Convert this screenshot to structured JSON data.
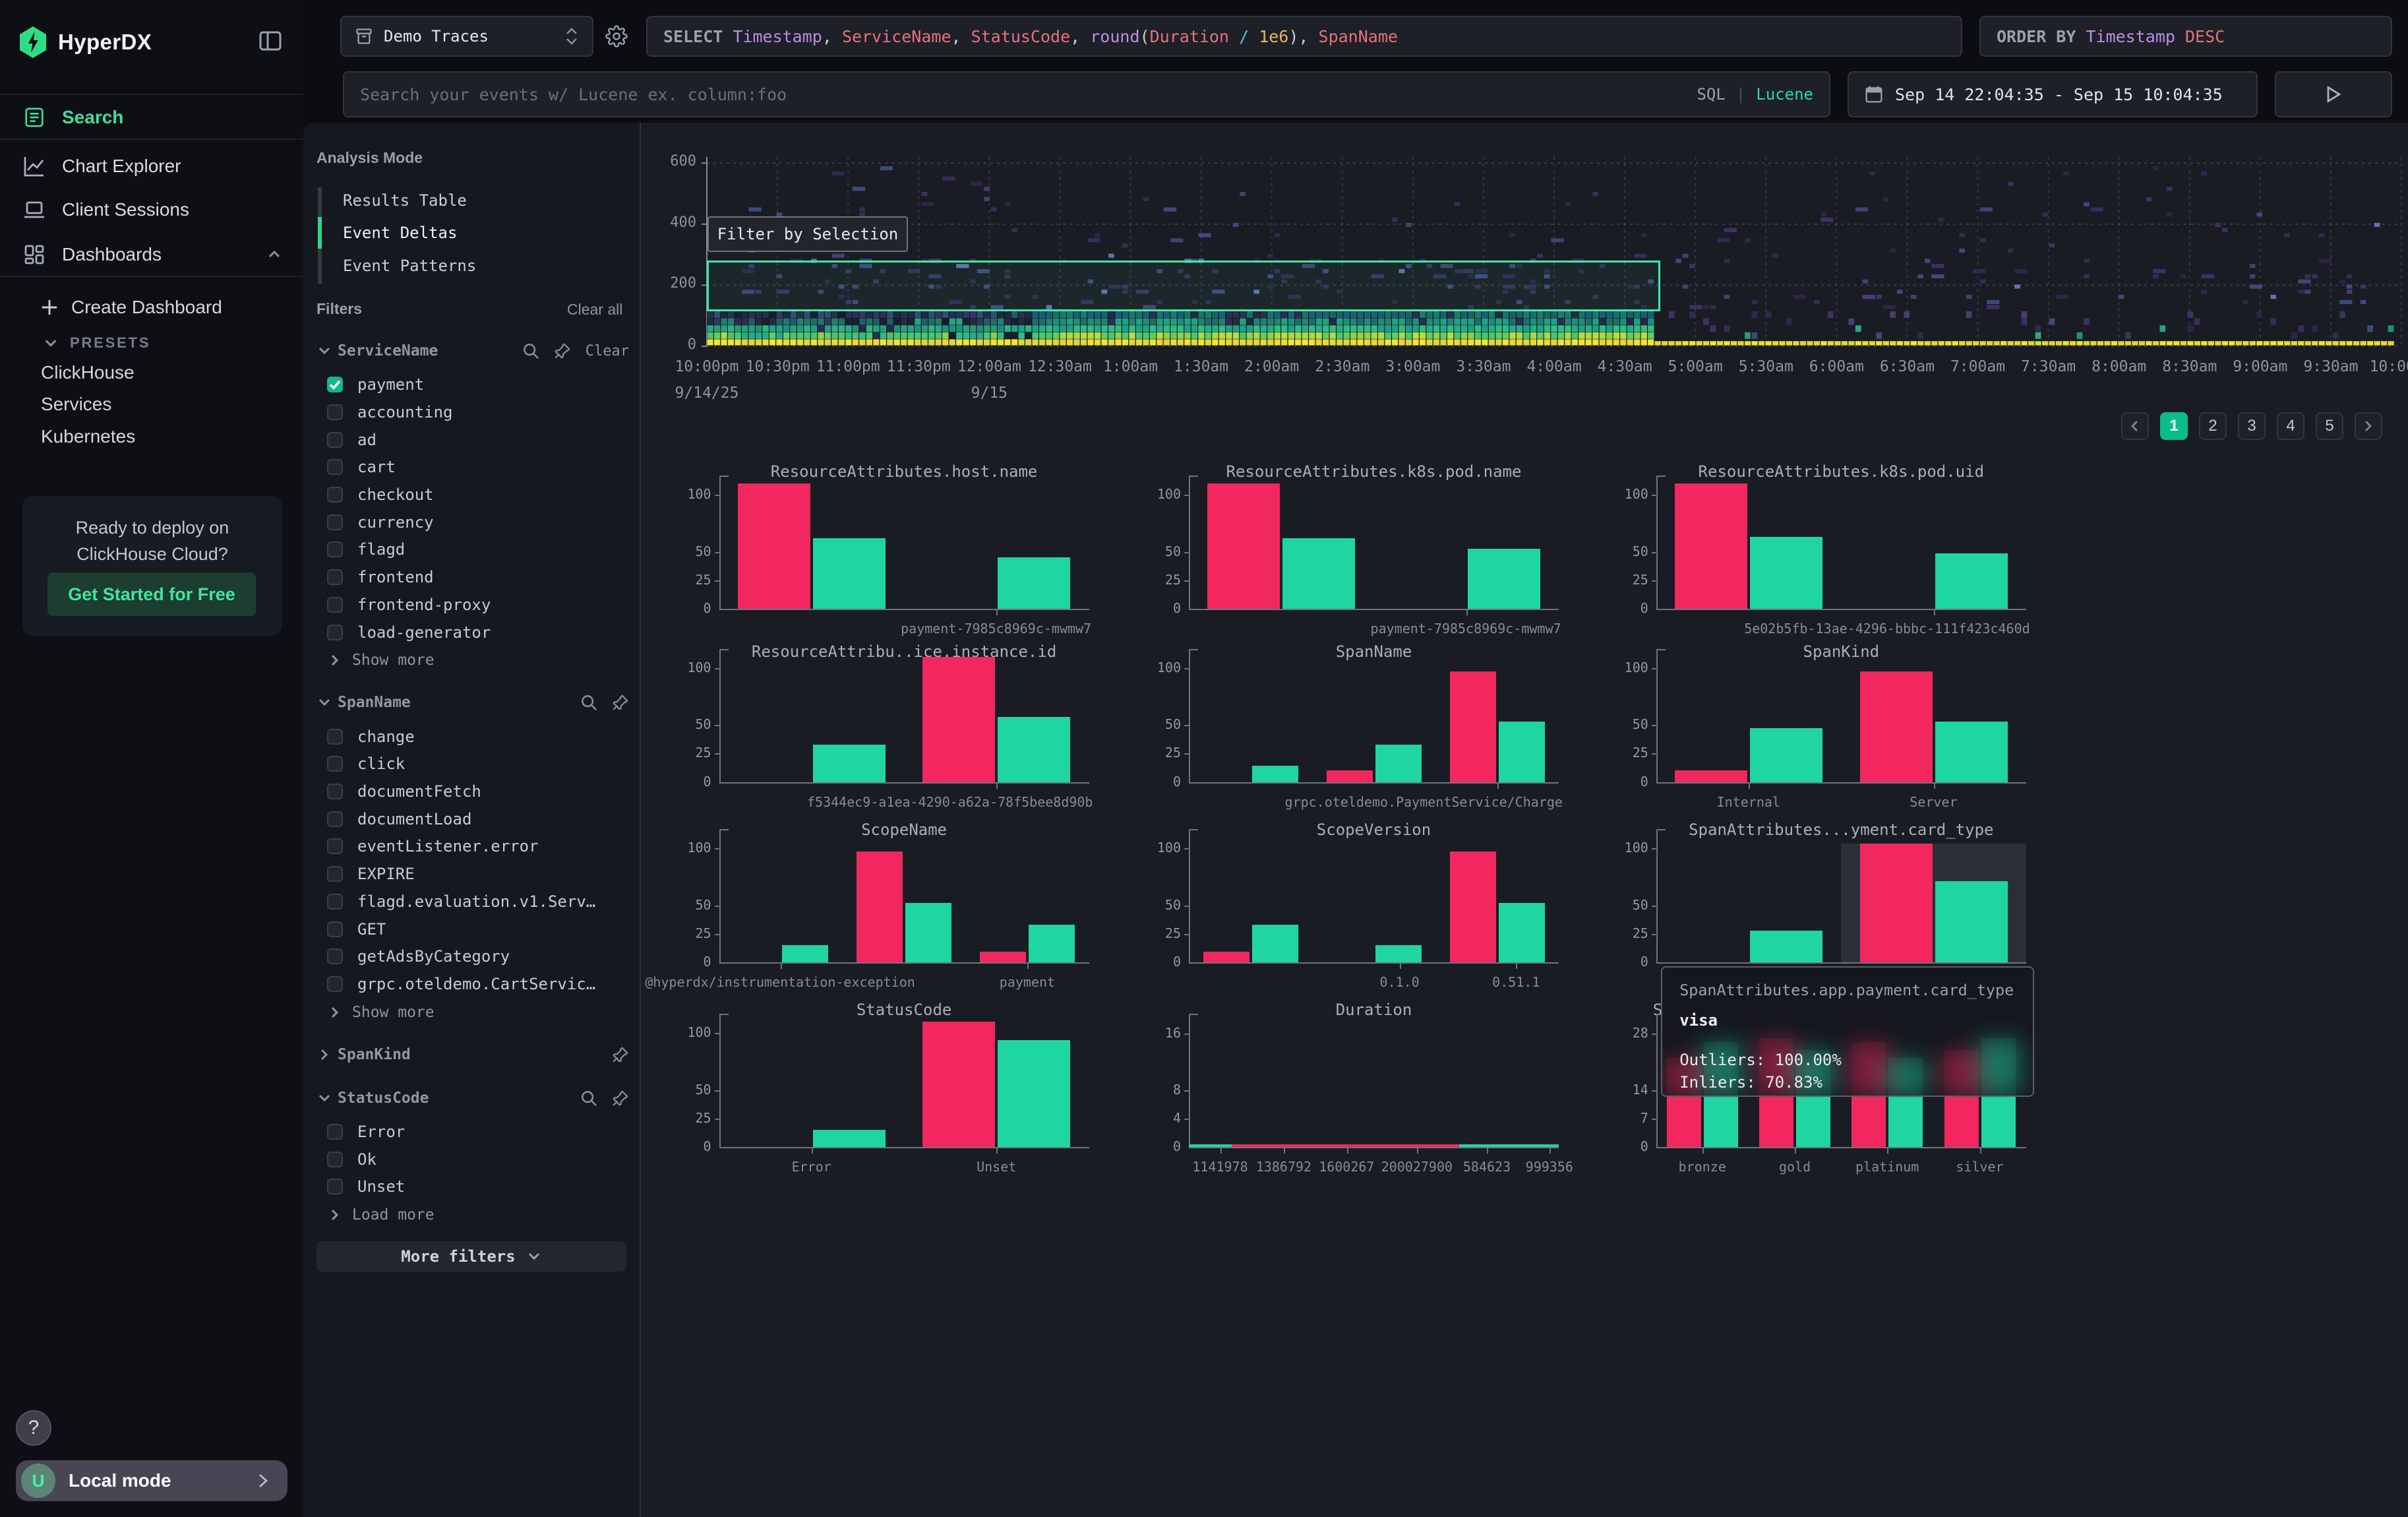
{
  "app_title": "HyperDX",
  "sidebar": {
    "logo_text": "HyperDX",
    "nav": [
      {
        "id": "search",
        "label": "Search",
        "icon": "reader-icon",
        "active": true
      },
      {
        "id": "chart-explorer",
        "label": "Chart Explorer",
        "icon": "chart-line-icon",
        "active": false
      },
      {
        "id": "client-sessions",
        "label": "Client Sessions",
        "icon": "laptop-icon",
        "active": false
      },
      {
        "id": "dashboards",
        "label": "Dashboards",
        "icon": "dashboard-icon",
        "active": false,
        "expanded": true
      }
    ],
    "create_dashboard": "Create Dashboard",
    "presets_label": "PRESETS",
    "presets": [
      "ClickHouse",
      "Services",
      "Kubernetes"
    ],
    "promo": {
      "line1": "Ready to deploy on",
      "line2": "ClickHouse Cloud?",
      "cta": "Get Started for Free"
    },
    "help_label": "?",
    "user": {
      "avatar": "U",
      "label": "Local mode"
    }
  },
  "topbar": {
    "source_select": {
      "value": "Demo Traces"
    },
    "query_tokens": [
      {
        "t": "SELECT ",
        "c": "kw"
      },
      {
        "t": "Timestamp",
        "c": "id"
      },
      {
        "t": ", ",
        "c": "p"
      },
      {
        "t": "ServiceName",
        "c": "f"
      },
      {
        "t": ", ",
        "c": "p"
      },
      {
        "t": "StatusCode",
        "c": "f"
      },
      {
        "t": ", ",
        "c": "p"
      },
      {
        "t": "round",
        "c": "id"
      },
      {
        "t": "(",
        "c": "p"
      },
      {
        "t": "Duration",
        "c": "f"
      },
      {
        "t": " ",
        "c": "p"
      },
      {
        "t": "/",
        "c": "op"
      },
      {
        "t": " ",
        "c": "p"
      },
      {
        "t": "1e6",
        "c": "n"
      },
      {
        "t": ")",
        "c": "p"
      },
      {
        "t": ", ",
        "c": "p"
      },
      {
        "t": "SpanName",
        "c": "f"
      }
    ],
    "orderby_tokens": [
      {
        "t": "ORDER BY ",
        "c": "kw"
      },
      {
        "t": "Timestamp ",
        "c": "id"
      },
      {
        "t": "DESC",
        "c": "f"
      }
    ],
    "search": {
      "placeholder": "Search your events w/ Lucene ex. column:foo",
      "modes": [
        "SQL",
        "Lucene"
      ],
      "active_mode": "Lucene",
      "divider": "|"
    },
    "date_range": "Sep 14 22:04:35 - Sep 15 10:04:35"
  },
  "panel": {
    "analysis_mode": {
      "label": "Analysis Mode",
      "options": [
        "Results Table",
        "Event Deltas",
        "Event Patterns"
      ],
      "active": "Event Deltas"
    },
    "filters_label": "Filters",
    "clear_all": "Clear all",
    "groups": [
      {
        "name": "ServiceName",
        "expanded": true,
        "icons": [
          "search",
          "pin"
        ],
        "clear": "Clear",
        "items": [
          {
            "label": "payment",
            "checked": true
          },
          {
            "label": "accounting"
          },
          {
            "label": "ad"
          },
          {
            "label": "cart"
          },
          {
            "label": "checkout"
          },
          {
            "label": "currency"
          },
          {
            "label": "flagd"
          },
          {
            "label": "frontend"
          },
          {
            "label": "frontend-proxy"
          },
          {
            "label": "load-generator"
          }
        ],
        "more": "Show more"
      },
      {
        "name": "SpanName",
        "expanded": true,
        "icons": [
          "search",
          "pin"
        ],
        "items": [
          {
            "label": "change"
          },
          {
            "label": "click"
          },
          {
            "label": "documentFetch"
          },
          {
            "label": "documentLoad"
          },
          {
            "label": "eventListener.error"
          },
          {
            "label": "EXPIRE"
          },
          {
            "label": "flagd.evaluation.v1.Serv…"
          },
          {
            "label": "GET"
          },
          {
            "label": "getAdsByCategory"
          },
          {
            "label": "grpc.oteldemo.CartServic…"
          }
        ],
        "more": "Show more"
      },
      {
        "name": "SpanKind",
        "expanded": false,
        "icons": [
          "pin"
        ],
        "items": []
      },
      {
        "name": "StatusCode",
        "expanded": true,
        "icons": [
          "search",
          "pin"
        ],
        "items": [
          {
            "label": "Error"
          },
          {
            "label": "Ok"
          },
          {
            "label": "Unset"
          }
        ],
        "more": "Load more"
      }
    ],
    "more_filters": "More filters"
  },
  "chart_data": [
    {
      "type": "heatmap",
      "title": "",
      "ylabel": "",
      "xlabel": "",
      "yticks": [
        0,
        200,
        400,
        600
      ],
      "ylim": [
        0,
        620
      ],
      "xticks": [
        "10:00pm",
        "10:30pm",
        "11:00pm",
        "11:30pm",
        "12:00am",
        "12:30am",
        "1:00am",
        "1:30am",
        "2:00am",
        "2:30am",
        "3:00am",
        "3:30am",
        "4:00am",
        "4:30am",
        "5:00am",
        "5:30am",
        "6:00am",
        "6:30am",
        "7:00am",
        "7:30am",
        "8:00am",
        "8:30am",
        "9:00am",
        "9:30am",
        "10:00am"
      ],
      "date_ticks": [
        {
          "label": "9/14/25",
          "tick": 0
        },
        {
          "label": "9/15",
          "tick": 4
        }
      ],
      "description": "Event density heatmap: dense teal/green band below ~100 with bright yellow row at 0 until ~4:50am, sparse purple cells up to ~600 across full range; yellow baseline row continues to 10:00am",
      "palette": {
        "low": "#2d2b52",
        "mid": "#1f8f7b",
        "high": "#3fc878",
        "max": "#ead937"
      },
      "seed": 1337,
      "selection": {
        "x0_tick": 0,
        "x1_tick": 13.5,
        "y0": 115,
        "y1": 280,
        "label": "Filter by Selection"
      },
      "legend_pos": "none",
      "grid": "dotted"
    },
    {
      "type": "bar",
      "title": "ResourceAttributes.host.name",
      "col": 0,
      "row": 0,
      "n": 2,
      "yticks": [
        0,
        25,
        50,
        100
      ],
      "ymax": 110,
      "bars": [
        {
          "cat": 0,
          "series": "Outliers",
          "value": 100,
          "clip": true
        },
        {
          "cat": 0,
          "series": "Inliers",
          "value": 62
        },
        {
          "cat": 1,
          "series": "Inliers",
          "value": 45
        }
      ],
      "xlabels": [
        {
          "cat": 1,
          "text": "payment-7985c8969c-mwmw7"
        }
      ]
    },
    {
      "type": "bar",
      "title": "ResourceAttributes.k8s.pod.name",
      "col": 1,
      "row": 0,
      "n": 2,
      "yticks": [
        0,
        25,
        50,
        100
      ],
      "ymax": 110,
      "bars": [
        {
          "cat": 0,
          "series": "Outliers",
          "value": 100,
          "clip": true
        },
        {
          "cat": 0,
          "series": "Inliers",
          "value": 62
        },
        {
          "cat": 1,
          "series": "Inliers",
          "value": 53
        }
      ],
      "xlabels": [
        {
          "cat": 1,
          "text": "payment-7985c8969c-mwmw7"
        }
      ]
    },
    {
      "type": "bar",
      "title": "ResourceAttributes.k8s.pod.uid",
      "col": 2,
      "row": 0,
      "n": 2,
      "yticks": [
        0,
        25,
        50,
        100
      ],
      "ymax": 110,
      "bars": [
        {
          "cat": 0,
          "series": "Outliers",
          "value": 100,
          "clip": true
        },
        {
          "cat": 0,
          "series": "Inliers",
          "value": 63
        },
        {
          "cat": 1,
          "series": "Inliers",
          "value": 49
        }
      ],
      "xlabels": [
        {
          "cat": 1,
          "text": "5e02b5fb-13ae-4296-bbbc-111f423c460d"
        }
      ]
    },
    {
      "type": "bar",
      "title": "ResourceAttribu..ice.instance.id",
      "col": 0,
      "row": 1,
      "n": 2,
      "yticks": [
        0,
        25,
        50,
        100
      ],
      "ymax": 110,
      "bars": [
        {
          "cat": 0,
          "series": "Inliers",
          "value": 33
        },
        {
          "cat": 1,
          "series": "Outliers",
          "value": 100,
          "clip": true
        },
        {
          "cat": 1,
          "series": "Inliers",
          "value": 57
        }
      ],
      "xlabels": [
        {
          "cat": 1,
          "text": "f5344ec9-a1ea-4290-a62a-78f5bee8d90b"
        }
      ]
    },
    {
      "type": "bar",
      "title": "SpanName",
      "col": 1,
      "row": 1,
      "n": 3,
      "yticks": [
        0,
        25,
        50,
        100
      ],
      "ymax": 110,
      "bars": [
        {
          "cat": 0,
          "series": "Inliers",
          "value": 14
        },
        {
          "cat": 1,
          "series": "Outliers",
          "value": 10
        },
        {
          "cat": 1,
          "series": "Inliers",
          "value": 33
        },
        {
          "cat": 2,
          "series": "Outliers",
          "value": 97
        },
        {
          "cat": 2,
          "series": "Inliers",
          "value": 53
        }
      ],
      "xlabels": [
        {
          "cat": 2,
          "text": "grpc.oteldemo.PaymentService/Charge"
        }
      ]
    },
    {
      "type": "bar",
      "title": "SpanKind",
      "col": 2,
      "row": 1,
      "n": 2,
      "yticks": [
        0,
        25,
        50,
        100
      ],
      "ymax": 110,
      "bars": [
        {
          "cat": 0,
          "series": "Outliers",
          "value": 10
        },
        {
          "cat": 0,
          "series": "Inliers",
          "value": 47
        },
        {
          "cat": 1,
          "series": "Outliers",
          "value": 97
        },
        {
          "cat": 1,
          "series": "Inliers",
          "value": 53
        }
      ],
      "xlabels": [
        {
          "cat": 0,
          "text": "Internal"
        },
        {
          "cat": 1,
          "text": "Server"
        }
      ]
    },
    {
      "type": "bar",
      "title": "ScopeName",
      "col": 0,
      "row": 2,
      "n": 3,
      "yticks": [
        0,
        25,
        50,
        100
      ],
      "ymax": 110,
      "bars": [
        {
          "cat": 0,
          "series": "Inliers",
          "value": 15
        },
        {
          "cat": 1,
          "series": "Outliers",
          "value": 97
        },
        {
          "cat": 1,
          "series": "Inliers",
          "value": 52
        },
        {
          "cat": 2,
          "series": "Outliers",
          "value": 9
        },
        {
          "cat": 2,
          "series": "Inliers",
          "value": 33
        }
      ],
      "xlabels": [
        {
          "cat": 0,
          "text": "@hyperdx/instrumentation-exception"
        },
        {
          "cat": 2,
          "text": "payment"
        }
      ]
    },
    {
      "type": "bar",
      "title": "ScopeVersion",
      "col": 1,
      "row": 2,
      "n": 3,
      "yticks": [
        0,
        25,
        50,
        100
      ],
      "ymax": 110,
      "bars": [
        {
          "cat": 0,
          "series": "Outliers",
          "value": 9
        },
        {
          "cat": 0,
          "series": "Inliers",
          "value": 33
        },
        {
          "cat": 1,
          "series": "Inliers",
          "value": 15
        },
        {
          "cat": 2,
          "series": "Outliers",
          "value": 97
        },
        {
          "cat": 2,
          "series": "Inliers",
          "value": 52
        }
      ],
      "xlabels": [
        {
          "cat": 1,
          "text": "0.1.0",
          "fx": 0.57
        },
        {
          "cat": 2,
          "text": "0.51.1",
          "fx": 0.885
        }
      ]
    },
    {
      "type": "bar",
      "title": "SpanAttributes...yment.card_type",
      "col": 2,
      "row": 2,
      "n": 2,
      "yticks": [
        0,
        25,
        50,
        100
      ],
      "ymax": 110,
      "highlight_cat": 1,
      "clip_h": 90,
      "bars": [
        {
          "cat": 0,
          "series": "Inliers",
          "value": 28
        },
        {
          "cat": 1,
          "series": "Outliers",
          "value": 100,
          "clip": true
        },
        {
          "cat": 1,
          "series": "Inliers",
          "value": 71
        }
      ],
      "xlabels": []
    },
    {
      "type": "bar",
      "title": "StatusCode",
      "col": 0,
      "row": 3,
      "n": 2,
      "yticks": [
        0,
        25,
        50,
        100
      ],
      "ymax": 110,
      "bars": [
        {
          "cat": 0,
          "series": "Inliers",
          "value": 15
        },
        {
          "cat": 1,
          "series": "Outliers",
          "value": 100,
          "clip": true
        },
        {
          "cat": 1,
          "series": "Inliers",
          "value": 94
        }
      ],
      "xlabels": [
        {
          "cat": 0,
          "text": "Error"
        },
        {
          "cat": 1,
          "text": "Unset"
        }
      ]
    },
    {
      "type": "bar",
      "title": "Duration",
      "col": 1,
      "row": 3,
      "n": 6,
      "yticks": [
        0,
        4,
        8,
        16
      ],
      "ymax": 17.7,
      "xlabel_size": 10,
      "bars": [
        {
          "cat": 0,
          "series": "Outliers",
          "value": 0.3
        },
        {
          "cat": 0,
          "series": "Inliers",
          "value": 0.3
        },
        {
          "cat": 1,
          "series": "Outliers",
          "value": 0.3
        },
        {
          "cat": 1,
          "series": "Inliers",
          "value": 0.3
        },
        {
          "cat": 2,
          "series": "Outliers",
          "value": 0.3
        },
        {
          "cat": 2,
          "series": "Inliers",
          "value": 0.3
        },
        {
          "cat": 3,
          "series": "Outliers",
          "value": 0.3
        },
        {
          "cat": 3,
          "series": "Inliers",
          "value": 0.3
        },
        {
          "cat": 4,
          "series": "Outliers",
          "value": 0.3
        },
        {
          "cat": 4,
          "series": "Inliers",
          "value": 0.3
        },
        {
          "cat": 5,
          "series": "Outliers",
          "value": 0.3
        },
        {
          "cat": 5,
          "series": "Inliers",
          "value": 0.3
        }
      ],
      "strips": [
        {
          "fx": 0,
          "fw": 0.115,
          "series": "Inliers"
        },
        {
          "fx": 0.115,
          "fw": 0.615,
          "series": "Outliers"
        },
        {
          "fx": 0.73,
          "fw": 0.27,
          "series": "Inliers"
        }
      ],
      "xlabels": [
        {
          "cat": 0,
          "text": "1141978",
          "fx": 0.085
        },
        {
          "cat": 1,
          "text": "1386792",
          "fx": 0.257
        },
        {
          "cat": 2,
          "text": "1600267",
          "fx": 0.427
        },
        {
          "cat": 3,
          "text": "200027900",
          "fx": 0.617
        },
        {
          "cat": 4,
          "text": "584623",
          "fx": 0.806
        },
        {
          "cat": 5,
          "text": "999356",
          "fx": 0.975
        }
      ]
    },
    {
      "type": "bar",
      "title": "S",
      "title_align": "left",
      "col": 2,
      "row": 3,
      "n": 4,
      "yticks": [
        0,
        7,
        14,
        28
      ],
      "ymax": 31,
      "bars": [
        {
          "cat": 0,
          "series": "Outliers",
          "value": 22
        },
        {
          "cat": 0,
          "series": "Inliers",
          "value": 26
        },
        {
          "cat": 1,
          "series": "Outliers",
          "value": 27
        },
        {
          "cat": 1,
          "series": "Inliers",
          "value": 24
        },
        {
          "cat": 2,
          "series": "Outliers",
          "value": 26
        },
        {
          "cat": 2,
          "series": "Inliers",
          "value": 22
        },
        {
          "cat": 3,
          "series": "Outliers",
          "value": 24
        },
        {
          "cat": 3,
          "series": "Inliers",
          "value": 27
        }
      ],
      "xlabels": [
        {
          "cat": 0,
          "text": "bronze"
        },
        {
          "cat": 1,
          "text": "gold"
        },
        {
          "cat": 2,
          "text": "platinum"
        },
        {
          "cat": 3,
          "text": "silver"
        }
      ]
    }
  ],
  "series_colors": {
    "Outliers": "#f2275e",
    "Inliers": "#1fd6a2"
  },
  "pagination": {
    "prev": "chevron-left",
    "pages": [
      "1",
      "2",
      "3",
      "4",
      "5"
    ],
    "active": "1",
    "next": "chevron-right"
  },
  "tooltip": {
    "title": "SpanAttributes.app.payment.card_type",
    "category": "visa",
    "rows": [
      {
        "label": "Outliers",
        "value": "100.00%"
      },
      {
        "label": "Inliers",
        "value": "70.83%"
      }
    ]
  },
  "colors": {
    "accent_green": "#2bd98c",
    "outlier_red": "#f2275e",
    "inlier_green": "#1fd6a2",
    "checkbox_green": "#12b886",
    "selection_green": "#41e8a4",
    "active_page_green": "#0bbd8a",
    "heatmap_yellow": "#ead937",
    "background": "#0b0d11",
    "panel_background": "#171a21"
  }
}
